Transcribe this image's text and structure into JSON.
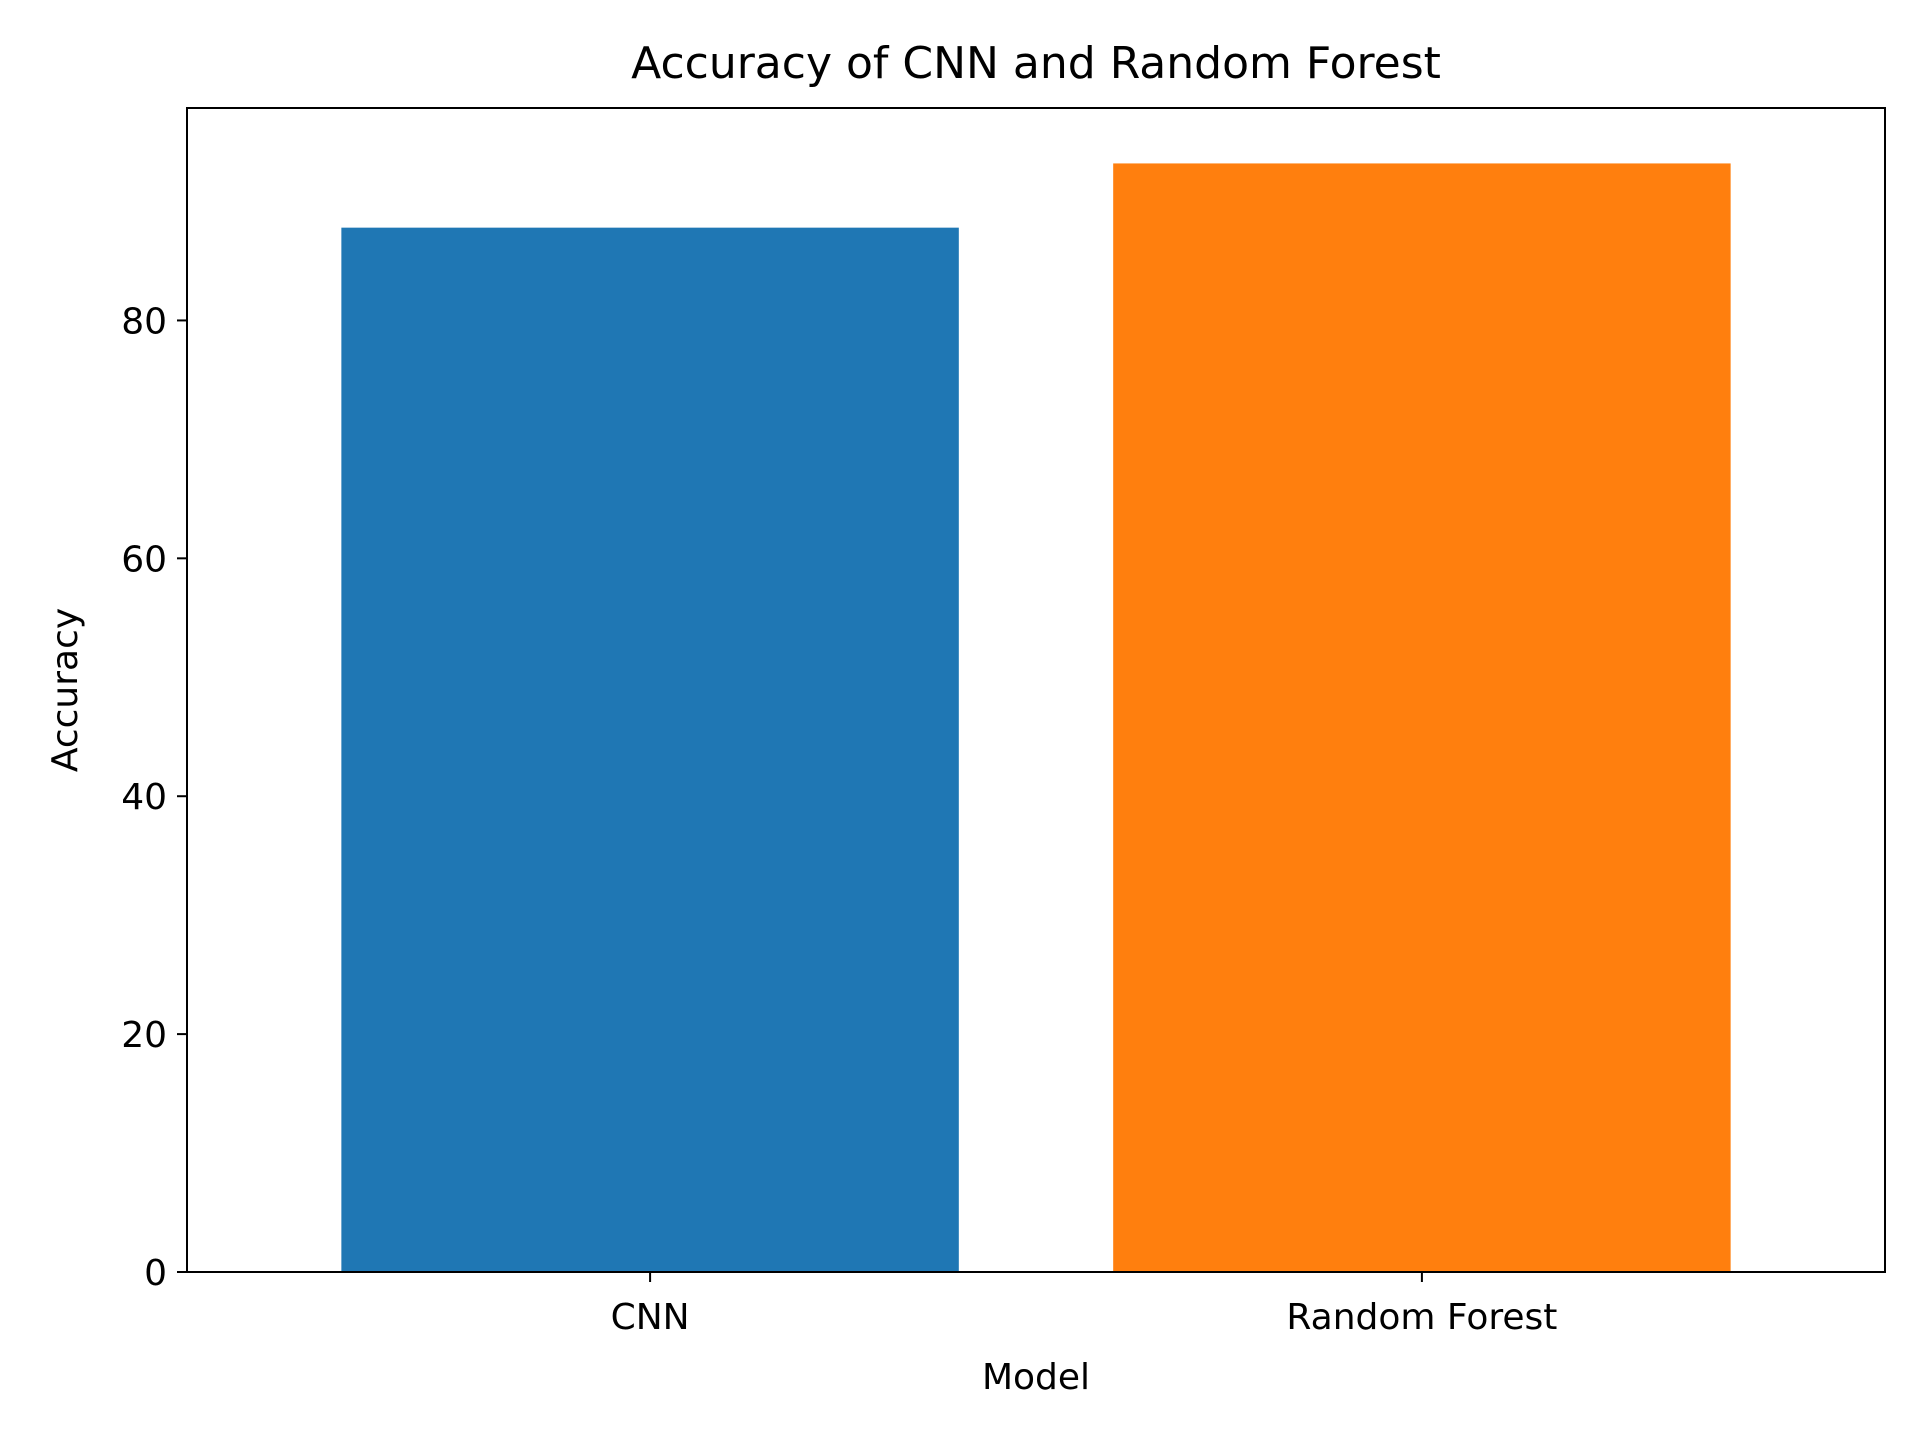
{
  "chart_data": {
    "type": "bar",
    "title": "Accuracy of CNN and Random Forest",
    "xlabel": "Model",
    "ylabel": "Accuracy",
    "categories": [
      "CNN",
      "Random Forest"
    ],
    "values": [
      87.8,
      93.2
    ],
    "colors": [
      "#1f77b4",
      "#ff7f0e"
    ],
    "ylim": [
      0,
      97.86
    ],
    "yticks": [
      0,
      20,
      40,
      60,
      80
    ],
    "grid": false,
    "legend": "none"
  }
}
